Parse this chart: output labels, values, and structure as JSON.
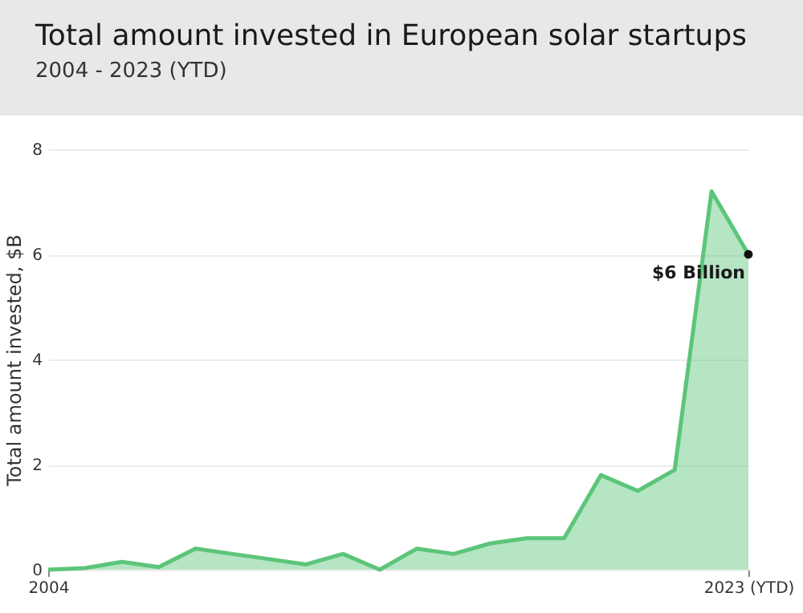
{
  "chart_data": {
    "type": "area",
    "title": "Total amount invested in European solar startups",
    "subtitle": "2004 - 2023 (YTD)",
    "ylabel": "Total amount invested, $B",
    "x": [
      2004,
      2005,
      2006,
      2007,
      2008,
      2009,
      2010,
      2011,
      2012,
      2013,
      2014,
      2015,
      2016,
      2017,
      2018,
      2019,
      2020,
      2021,
      2022,
      2023
    ],
    "series": [
      {
        "color": "#5cc57a",
        "values": [
          0,
          0.03,
          0.15,
          0.05,
          0.4,
          0.3,
          0.2,
          0.1,
          0.3,
          0,
          0.4,
          0.3,
          0.5,
          0.6,
          0.6,
          1.8,
          1.5,
          1.9,
          7.2,
          6.0
        ]
      },
      {
        "type": "scatter",
        "marker": "circle",
        "color": "#111111",
        "x": [
          2023
        ],
        "values": [
          6.0
        ]
      }
    ],
    "annotations": [
      {
        "text": "$6 Billion",
        "x": 2023,
        "y": 6
      }
    ],
    "xlim": [
      2004,
      2023
    ],
    "xticks": [
      2004,
      {
        "value": 2023,
        "label": "2023 (YTD)"
      }
    ],
    "ylim": [
      0,
      8
    ],
    "yticks": [
      0,
      2,
      4,
      6,
      8
    ],
    "grid": "y",
    "line_style": "solid"
  }
}
